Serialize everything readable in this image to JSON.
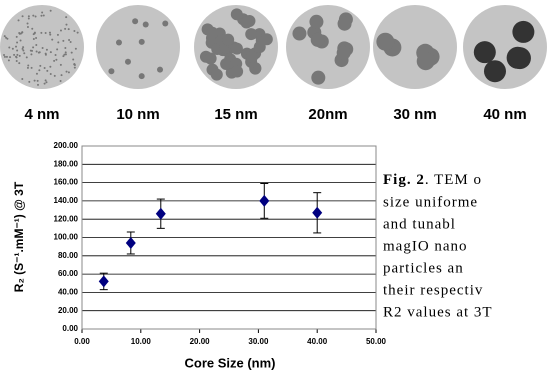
{
  "panels": [
    "4 nm",
    "10 nm",
    "15 nm",
    "20nm",
    "30 nm",
    "40 nm"
  ],
  "chart_data": {
    "type": "scatter",
    "x_label": "Core Size (nm)",
    "y_label": "R₂ (S⁻¹.mM⁻¹) @ 3T",
    "x": [
      3.7,
      8.3,
      13.4,
      31,
      40
    ],
    "series": [
      {
        "color": "#000080",
        "values": [
          52,
          94,
          126,
          140,
          127
        ],
        "errors": [
          9,
          12,
          16,
          19,
          22
        ]
      }
    ],
    "xlim": [
      0,
      50
    ],
    "ylim": [
      0,
      200
    ],
    "xticks": [
      {
        "value": 0,
        "label": "0.00"
      },
      {
        "value": 10,
        "label": "10.00"
      },
      {
        "value": 20,
        "label": "20.00"
      },
      {
        "value": 30,
        "label": "30.00"
      },
      {
        "value": 40,
        "label": "40.00"
      },
      {
        "value": 50,
        "label": "50.00"
      }
    ],
    "yticks": [
      {
        "value": 0,
        "label": "0.00"
      },
      {
        "value": 20,
        "label": "20.00"
      },
      {
        "value": 40,
        "label": "40.00"
      },
      {
        "value": 60,
        "label": "60.00"
      },
      {
        "value": 80,
        "label": "80.00"
      },
      {
        "value": 100,
        "label": "100.00"
      },
      {
        "value": 120,
        "label": "120.00"
      },
      {
        "value": 140,
        "label": "140.00"
      },
      {
        "value": 160,
        "label": "160.00"
      },
      {
        "value": 180,
        "label": "180.00"
      },
      {
        "value": 200,
        "label": "200.00"
      }
    ],
    "grid": true
  },
  "caption": {
    "label": "Fig. 2",
    "lines": [
      ". TEM o",
      "size uniforme",
      "and tunabl",
      "magIO nano",
      "particles an",
      "their respectiv",
      "R2 values at 3T"
    ]
  }
}
